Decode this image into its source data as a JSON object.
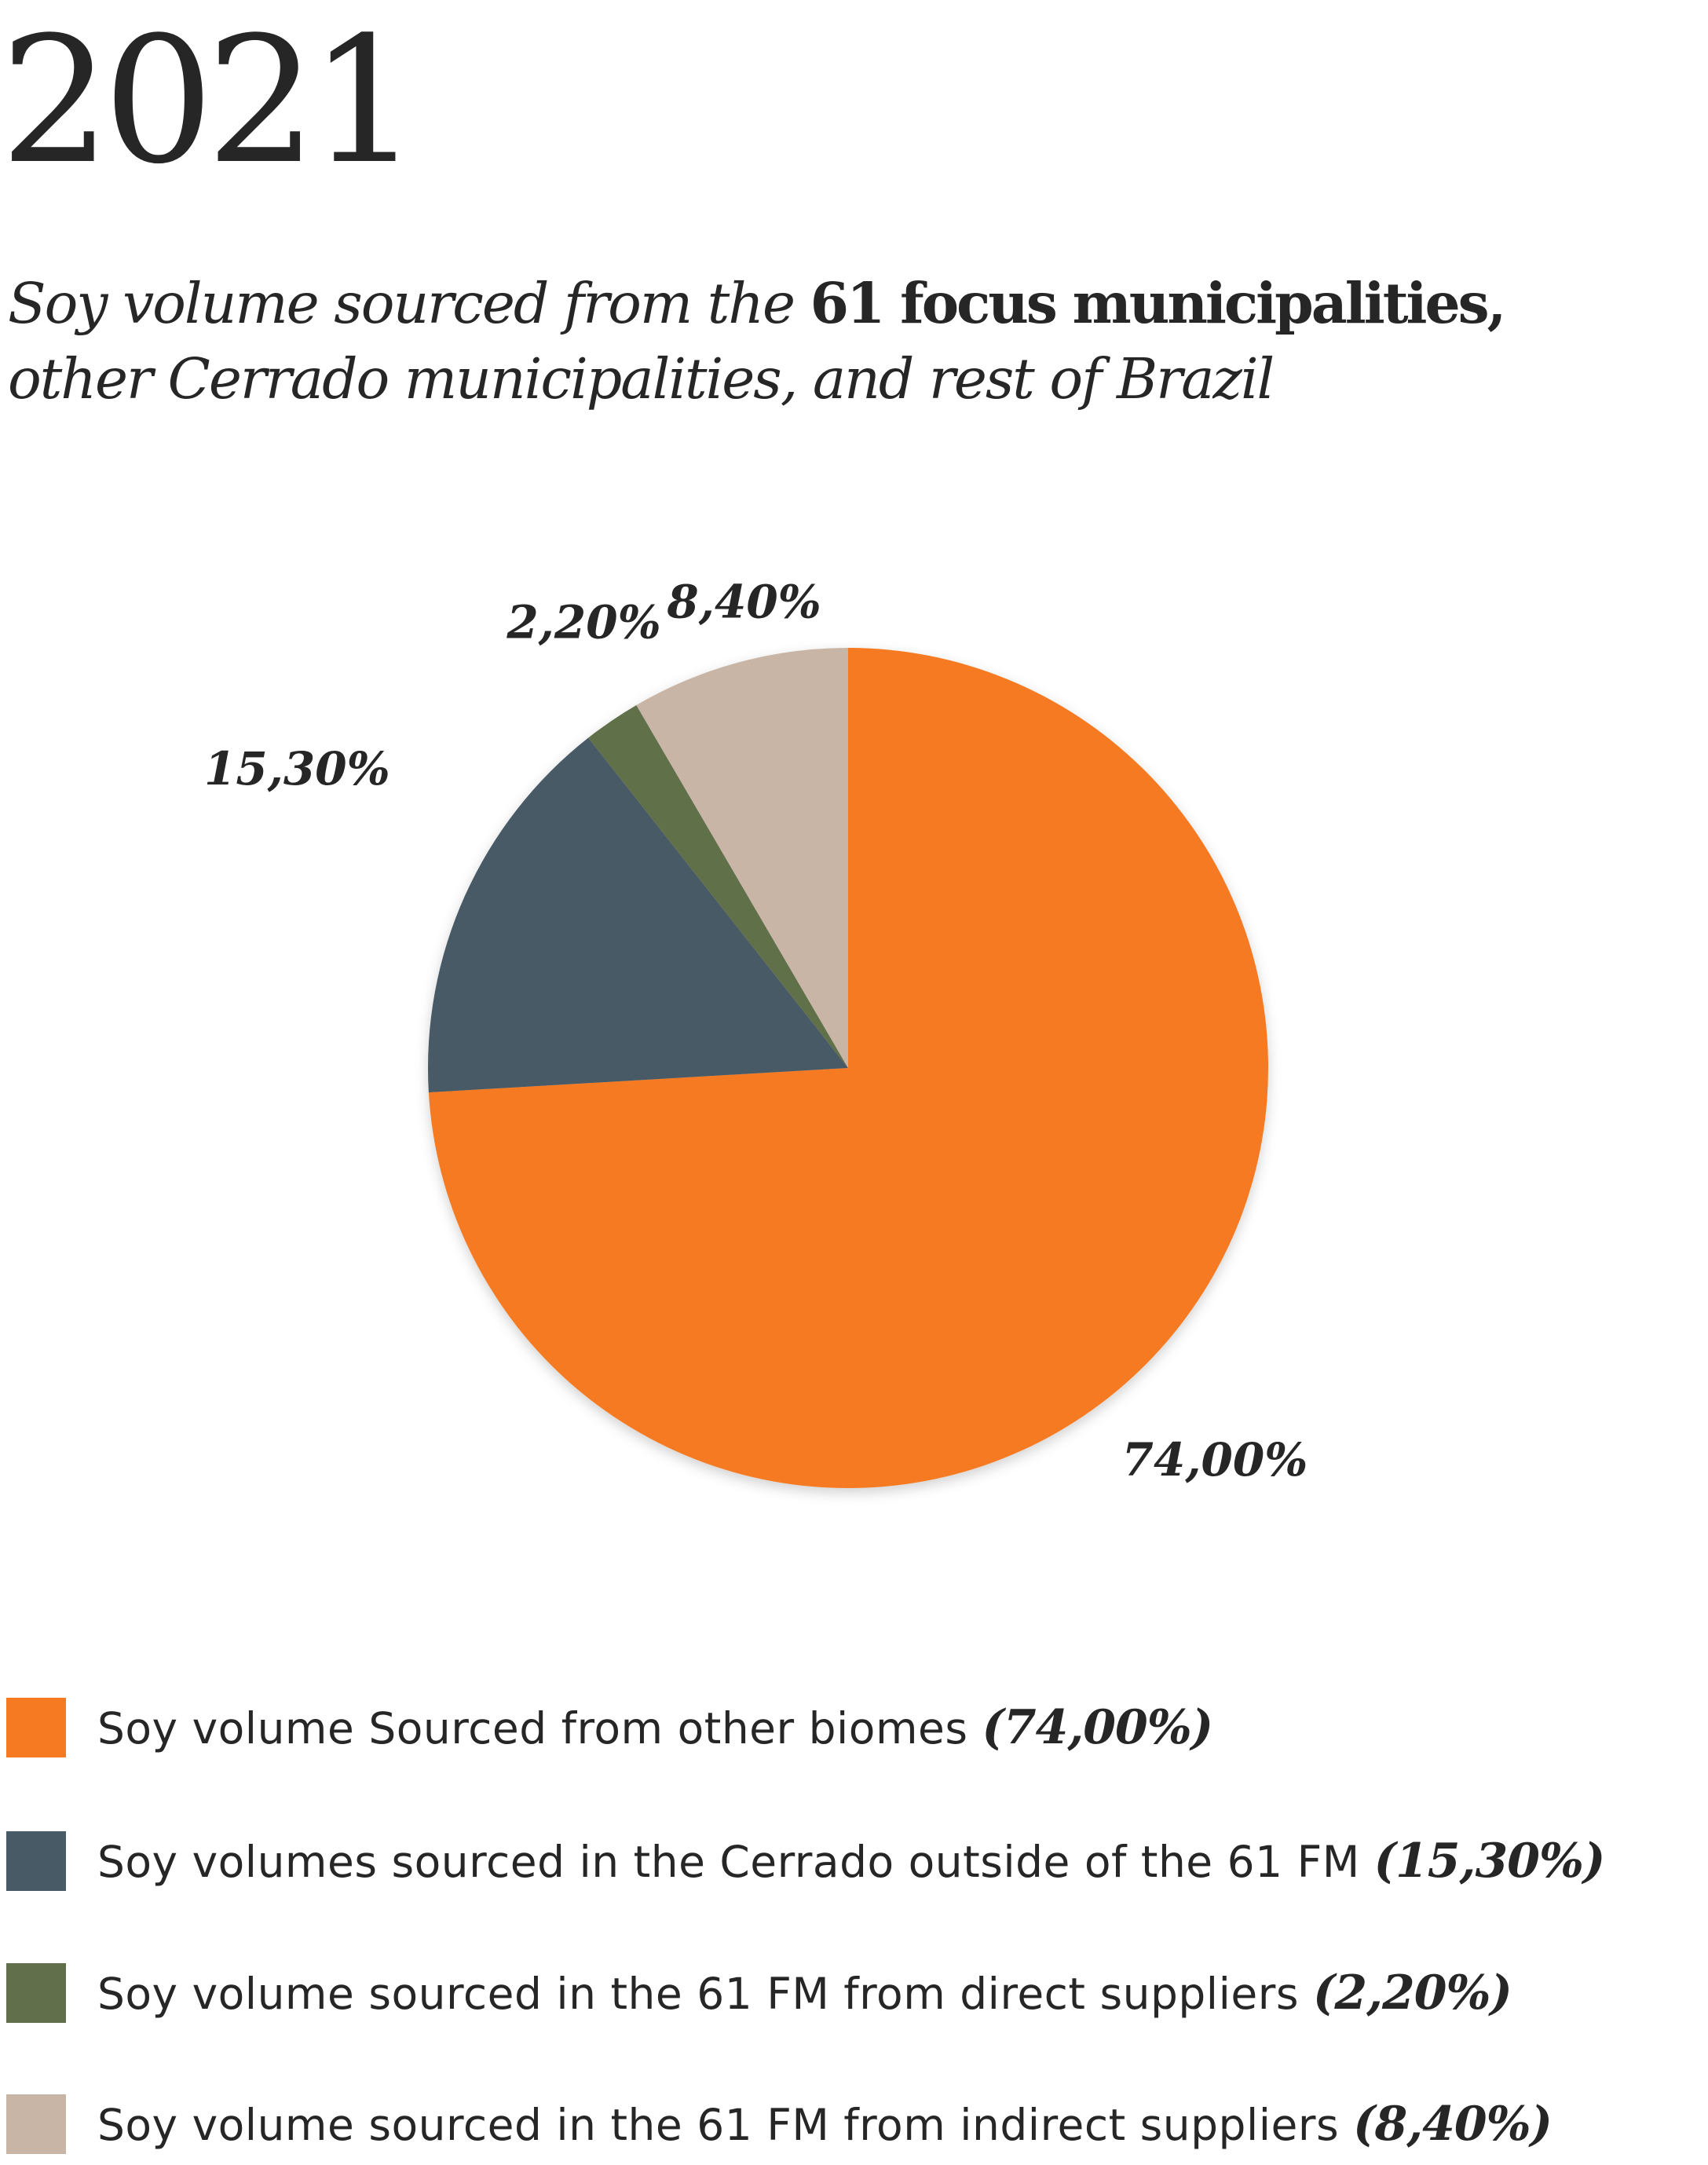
{
  "header": {
    "year": "2021",
    "subtitle_part1": "Soy volume sourced from the ",
    "subtitle_bold": "61 focus municipalities,",
    "subtitle_part2": "other Cerrado municipalities, and rest of Brazil"
  },
  "chart_data": {
    "type": "pie",
    "title": "Soy volume sourced from the 61 focus municipalities, other Cerrado municipalities, and rest of Brazil",
    "start": "12 o'clock",
    "direction": "clockwise",
    "slices": [
      {
        "name": "Soy volume Sourced from other biomes",
        "value": 74.0,
        "label": "74,00%",
        "legend_pct": "(74,00%)",
        "color": "#F57A21"
      },
      {
        "name": "Soy volumes sourced in the Cerrado outside of the 61 FM",
        "value": 15.3,
        "label": "15,30%",
        "legend_pct": "(15,30%)",
        "color": "#475A66"
      },
      {
        "name": "Soy volume sourced in the 61 FM from direct suppliers",
        "value": 2.2,
        "label": "2,20%",
        "legend_pct": "(2,20%)",
        "color": "#61704A"
      },
      {
        "name": "Soy volume sourced in the 61 FM from indirect suppliers",
        "value": 8.4,
        "label": "8,40%",
        "legend_pct": "(8,40%)",
        "color": "#C8B5A5"
      }
    ]
  }
}
